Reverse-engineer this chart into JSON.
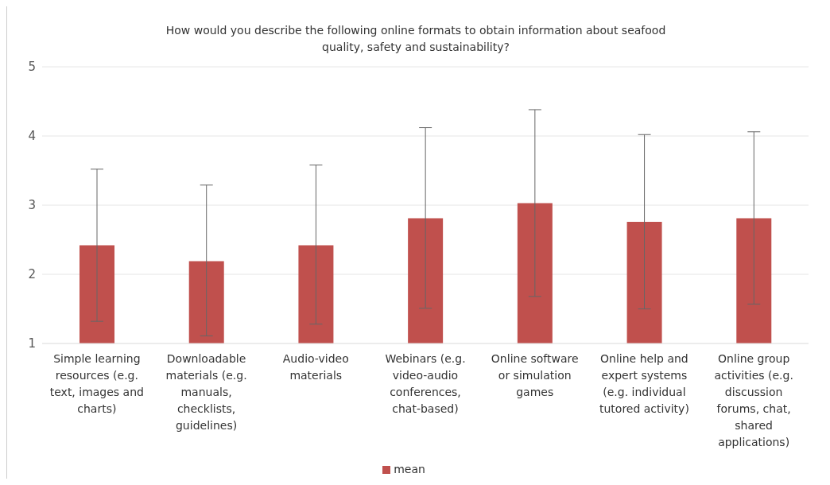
{
  "chart_data": {
    "type": "bar",
    "title": "How would you describe the following online formats to obtain information about seafood quality, safety and sustainability?",
    "categories": [
      "Simple learning resources (e.g. text, images and charts)",
      "Downloadable materials (e.g. manuals, checklists, guidelines)",
      "Audio-video materials",
      "Webinars (e.g. video-audio conferences, chat-based)",
      "Online software or simulation games",
      "Online help and expert systems (e.g. individual tutored activity)",
      "Online group activities (e.g. discussion forums, chat, shared applications)"
    ],
    "series": [
      {
        "name": "mean",
        "color": "#c0504d",
        "values": [
          2.42,
          2.19,
          2.42,
          2.81,
          3.03,
          2.76,
          2.81
        ],
        "errors": [
          [
            1.32,
            3.52
          ],
          [
            1.11,
            3.29
          ],
          [
            1.28,
            3.58
          ],
          [
            1.51,
            4.12
          ],
          [
            1.68,
            4.38
          ],
          [
            1.5,
            4.02
          ],
          [
            1.57,
            4.06
          ]
        ]
      }
    ],
    "ylim": [
      1,
      5
    ],
    "yticks": [
      1,
      2,
      3,
      4,
      5
    ],
    "grid": "y",
    "legend": "bottom"
  }
}
